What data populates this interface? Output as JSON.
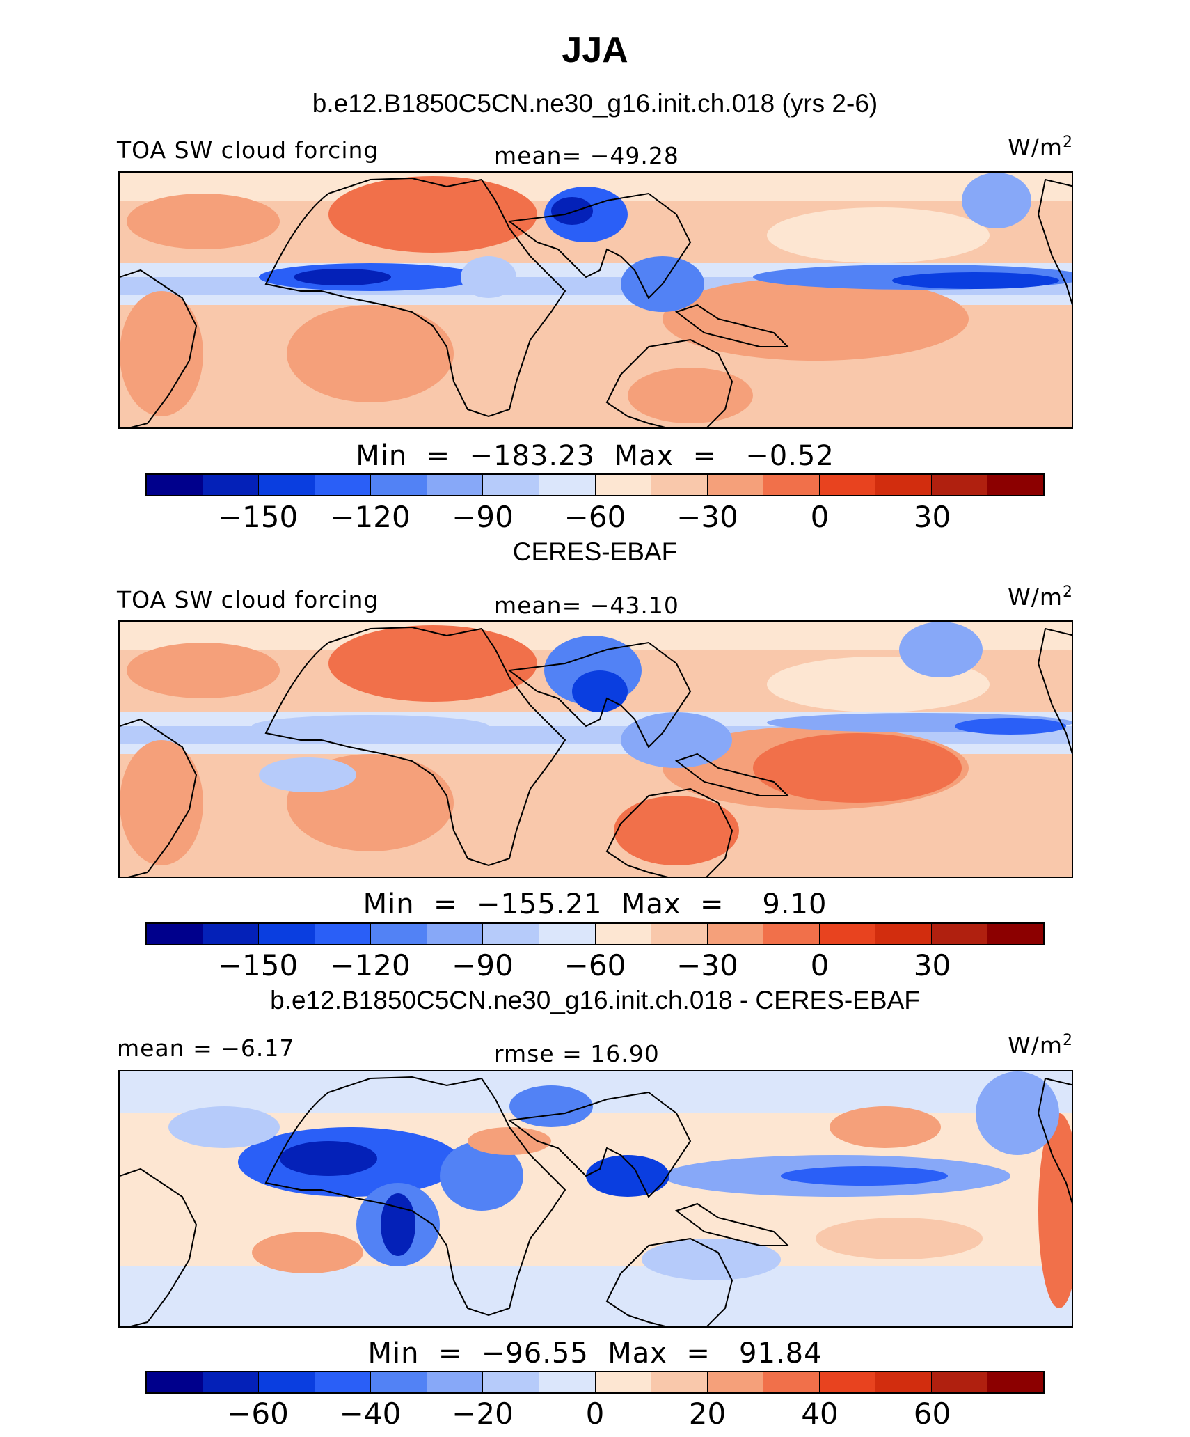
{
  "title": "JJA",
  "panels": [
    {
      "subtitle": "b.e12.B1850C5CN.ne30_g16.init.ch.018 (yrs 2-6)",
      "left_label": "TOA SW cloud forcing",
      "center_label": "mean= −49.28",
      "units": "W/m",
      "units_sup": "2",
      "minmax": "Min  =  −183.23  Max  =   −0.52",
      "colorbar_ticks": [
        "−150",
        "−120",
        "−90",
        "−60",
        "−30",
        "0",
        "30"
      ],
      "map_kind": "model"
    },
    {
      "subtitle": "CERES-EBAF",
      "left_label": "TOA SW cloud forcing",
      "center_label": "mean= −43.10",
      "units": "W/m",
      "units_sup": "2",
      "minmax": "Min  =  −155.21  Max  =    9.10",
      "colorbar_ticks": [
        "−150",
        "−120",
        "−90",
        "−60",
        "−30",
        "0",
        "30"
      ],
      "map_kind": "obs"
    },
    {
      "subtitle": "b.e12.B1850C5CN.ne30_g16.init.ch.018 - CERES-EBAF",
      "left_label": "mean =   −6.17",
      "center_label": "rmse =   16.90",
      "units": "W/m",
      "units_sup": "2",
      "minmax": "Min  =  −96.55  Max  =   91.84",
      "colorbar_ticks": [
        "−60",
        "−40",
        "−20",
        "0",
        "20",
        "40",
        "60"
      ],
      "map_kind": "diff"
    }
  ],
  "colorbar_colors": [
    "#00008c",
    "#0421b8",
    "#0a3ee0",
    "#2a5ff7",
    "#5282f5",
    "#87a8f8",
    "#b6cbfa",
    "#dbe6fb",
    "#fde6d2",
    "#f9c8ab",
    "#f5a07a",
    "#f1704a",
    "#e8431f",
    "#d22d0e",
    "#b0200f",
    "#8c0000"
  ]
}
